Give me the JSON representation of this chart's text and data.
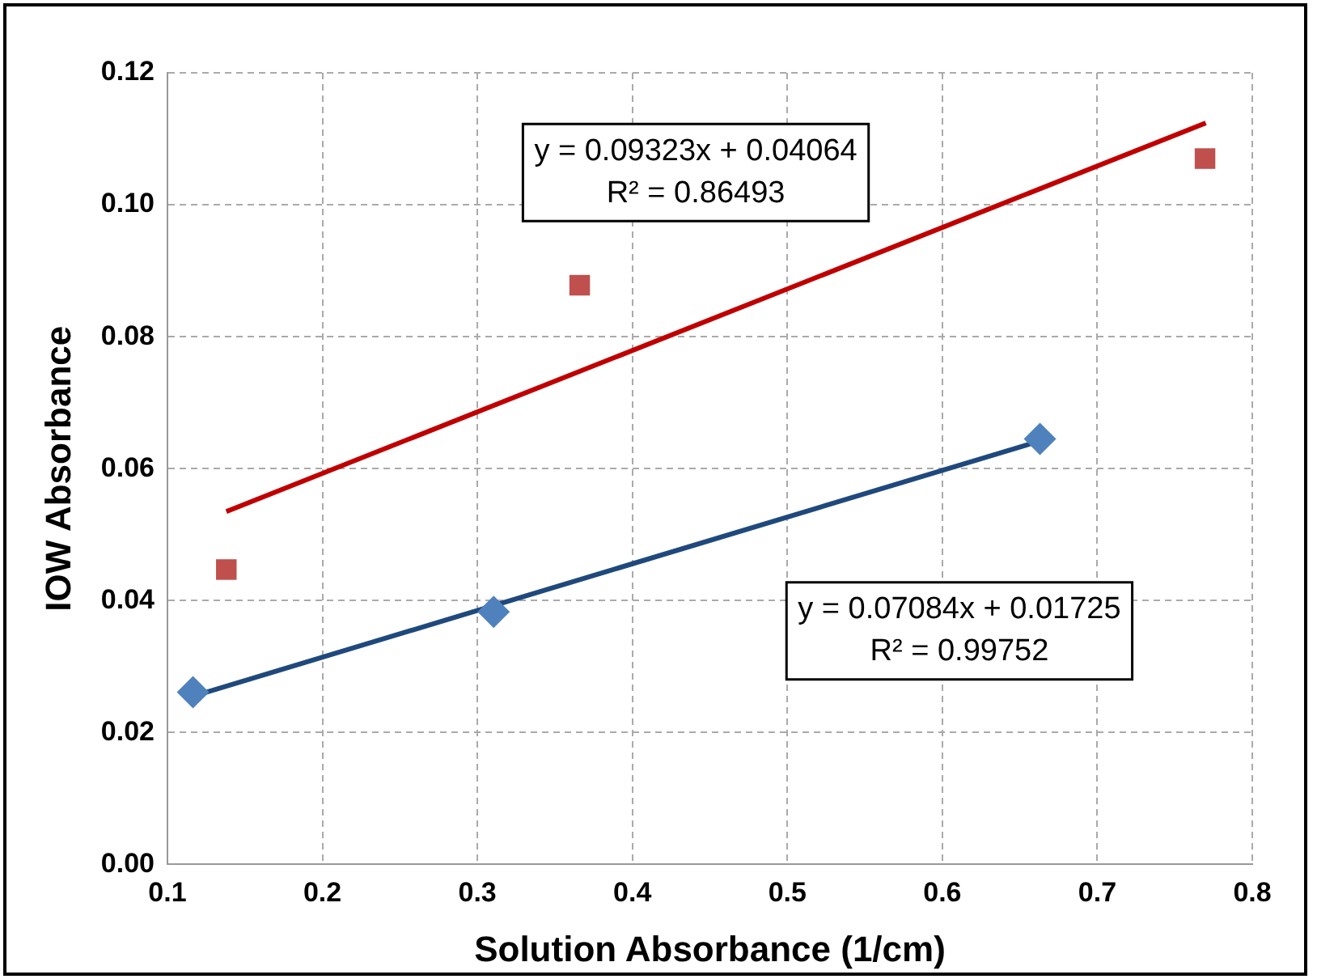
{
  "chart_data": {
    "type": "scatter",
    "xlabel": "Solution Absorbance (1/cm)",
    "ylabel": "IOW Absorbance",
    "xlim": [
      0.1,
      0.8
    ],
    "xticks": [
      0.1,
      0.2,
      0.3,
      0.4,
      0.5,
      0.6,
      0.7,
      0.8
    ],
    "ylim": [
      0,
      0.12
    ],
    "yticks": [
      {
        "value": 0,
        "label": "0.00"
      },
      {
        "value": 0.02,
        "label": "0.02"
      },
      {
        "value": 0.04,
        "label": "0.04"
      },
      {
        "value": 0.06,
        "label": "0.06"
      },
      {
        "value": 0.08,
        "label": "0.08"
      },
      {
        "value": 0.1,
        "label": "0.10"
      },
      {
        "value": 0.12,
        "label": "0.12"
      }
    ],
    "grid": true,
    "legend": false,
    "series": [
      {
        "marker": "diamond",
        "color": "#4f81bd",
        "x": [
          0.1165,
          0.3105,
          0.663
        ],
        "values": [
          0.0261,
          0.0383,
          0.0645
        ]
      },
      {
        "marker": "square",
        "color": "#c0504d",
        "x": [
          0.138,
          0.366,
          0.7695
        ],
        "values": [
          0.0447,
          0.0878,
          0.107
        ]
      },
      {
        "type": "line",
        "color": "#1f497d",
        "x": [
          0.1165,
          0.663
        ],
        "values": [
          0.0255,
          0.0642
        ]
      },
      {
        "type": "line",
        "color": "#c00000",
        "x": [
          0.138,
          0.77
        ],
        "values": [
          0.0535,
          0.1124
        ]
      }
    ],
    "annotations": [
      "y = 0.09323x + 0.04064\nR² = 0.86493",
      "y = 0.07084x + 0.01725\nR² = 0.99752"
    ]
  }
}
